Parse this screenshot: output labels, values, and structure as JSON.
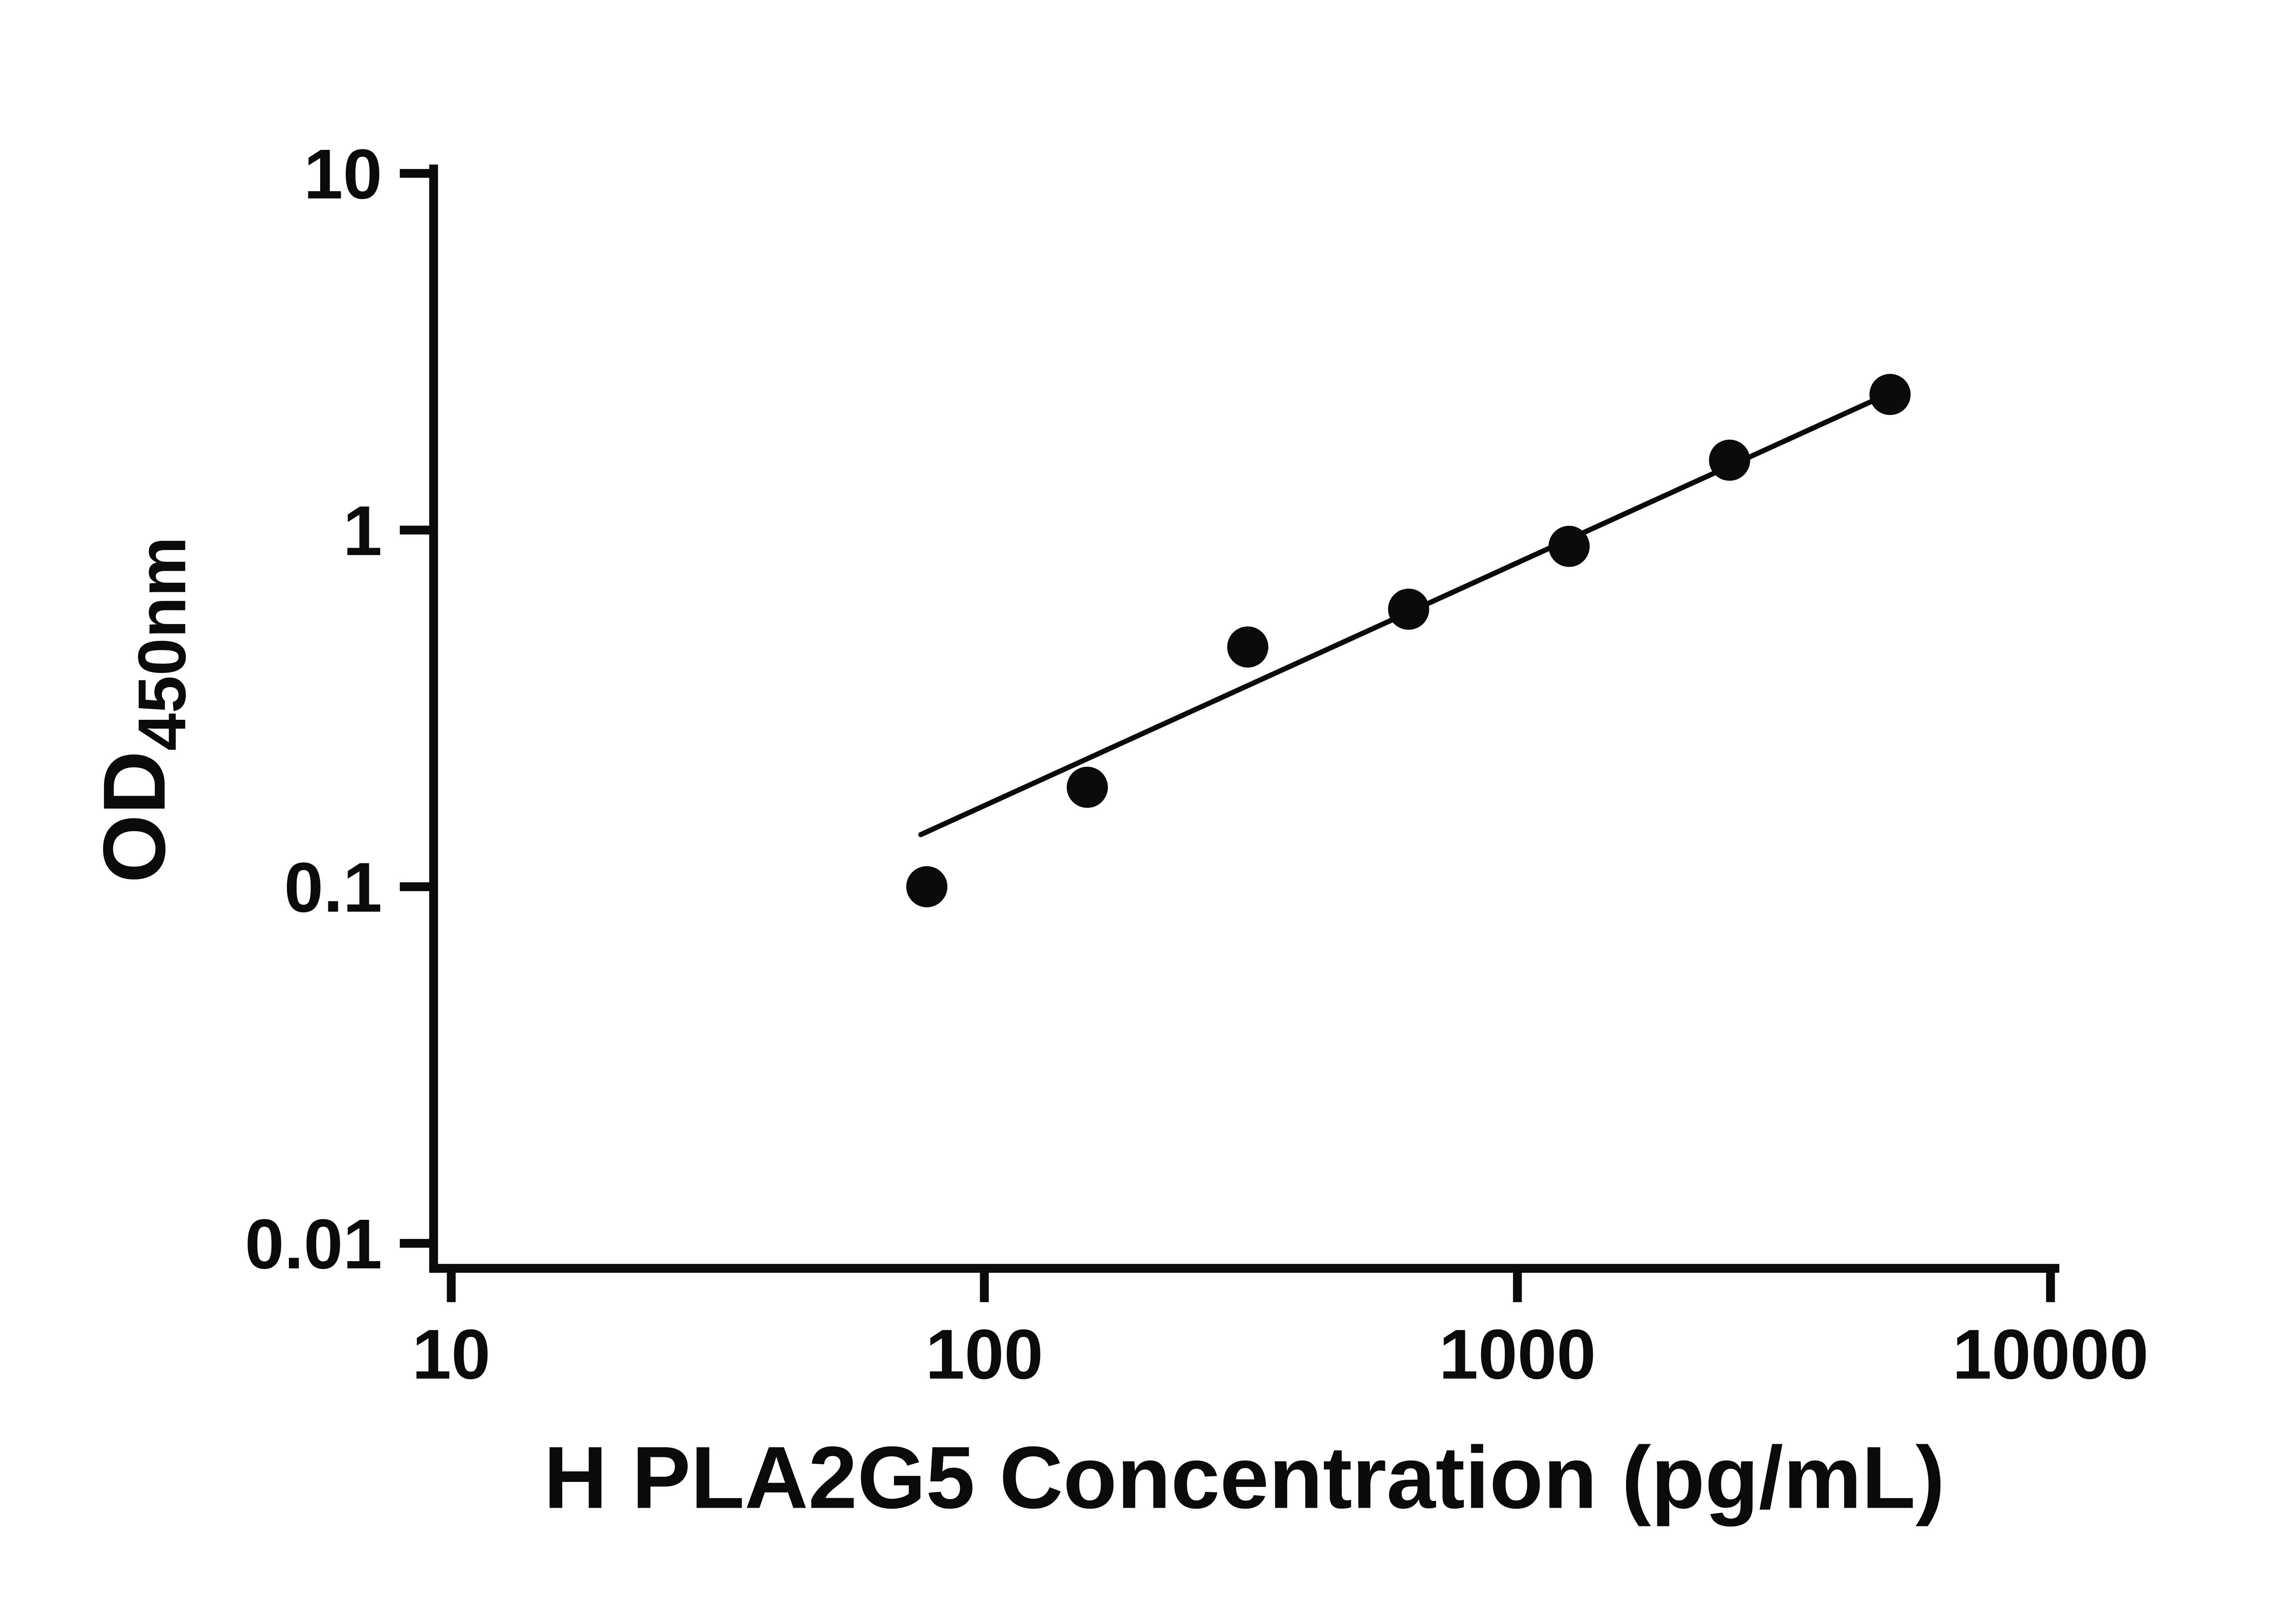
{
  "chart_data": {
    "type": "scatter",
    "title": "",
    "xlabel": "H PLA2G5 Concentration (pg/mL)",
    "ylabel": "OD",
    "ylabel_subscript": "450nm",
    "x_scale": "log10",
    "y_scale": "log10",
    "xlim": [
      10,
      10000
    ],
    "ylim": [
      0.01,
      10
    ],
    "x_ticks": [
      10,
      100,
      1000,
      10000
    ],
    "x_tick_labels": [
      "10",
      "100",
      "1000",
      "10000"
    ],
    "y_ticks": [
      0.01,
      0.1,
      1,
      10
    ],
    "y_tick_labels": [
      "0.01",
      "0.1",
      "1",
      "10"
    ],
    "grid": false,
    "legend": false,
    "marker_shape": "circle",
    "marker_color": "#0a0a0a",
    "line_color": "#0a0a0a",
    "axis_color": "#0a0a0a",
    "points": [
      {
        "x": 78,
        "y": 0.1
      },
      {
        "x": 156,
        "y": 0.19
      },
      {
        "x": 312,
        "y": 0.47
      },
      {
        "x": 625,
        "y": 0.6
      },
      {
        "x": 1250,
        "y": 0.9
      },
      {
        "x": 2500,
        "y": 1.57
      },
      {
        "x": 5000,
        "y": 2.4
      }
    ],
    "trend_line": {
      "x1": 76,
      "y1": 0.14,
      "x2": 4900,
      "y2": 2.39
    }
  }
}
